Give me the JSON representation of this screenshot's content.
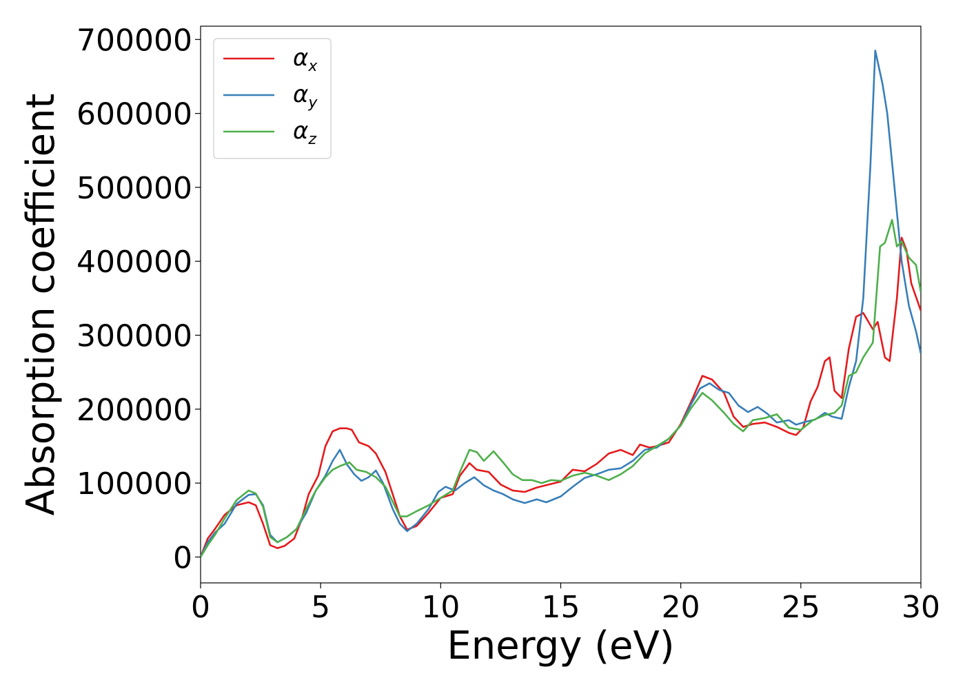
{
  "chart_data": {
    "type": "line",
    "xlabel": "Energy (eV)",
    "ylabel": "Absorption coefficient",
    "xlim": [
      0,
      30
    ],
    "ylim": [
      -35000,
      718000
    ],
    "x_ticks": [
      0,
      5,
      10,
      15,
      20,
      25,
      30
    ],
    "x_tick_labels": [
      "0",
      "5",
      "10",
      "15",
      "20",
      "25",
      "30"
    ],
    "y_ticks": [
      0,
      100000,
      200000,
      300000,
      400000,
      500000,
      600000,
      700000
    ],
    "y_tick_labels": [
      "0",
      "100000",
      "200000",
      "300000",
      "400000",
      "500000",
      "600000",
      "700000"
    ],
    "grid": false,
    "legend_position": "top-left",
    "series": [
      {
        "name": "α",
        "subscript": "x",
        "color": "#e41a1c",
        "points": [
          [
            0,
            0
          ],
          [
            0.3,
            25000
          ],
          [
            0.6,
            38000
          ],
          [
            1.0,
            57000
          ],
          [
            1.5,
            70000
          ],
          [
            2.0,
            74000
          ],
          [
            2.3,
            70000
          ],
          [
            2.6,
            45000
          ],
          [
            2.9,
            16000
          ],
          [
            3.2,
            12000
          ],
          [
            3.5,
            15000
          ],
          [
            3.9,
            25000
          ],
          [
            4.2,
            50000
          ],
          [
            4.5,
            85000
          ],
          [
            4.9,
            110000
          ],
          [
            5.2,
            150000
          ],
          [
            5.5,
            170000
          ],
          [
            5.8,
            174000
          ],
          [
            6.1,
            174000
          ],
          [
            6.3,
            172000
          ],
          [
            6.6,
            155000
          ],
          [
            7.0,
            150000
          ],
          [
            7.3,
            140000
          ],
          [
            7.7,
            115000
          ],
          [
            8.0,
            85000
          ],
          [
            8.3,
            55000
          ],
          [
            8.6,
            37000
          ],
          [
            9.0,
            42000
          ],
          [
            9.5,
            60000
          ],
          [
            10.0,
            80000
          ],
          [
            10.5,
            85000
          ],
          [
            10.8,
            110000
          ],
          [
            11.2,
            127000
          ],
          [
            11.5,
            118000
          ],
          [
            12.0,
            115000
          ],
          [
            12.5,
            98000
          ],
          [
            13.0,
            90000
          ],
          [
            13.5,
            88000
          ],
          [
            14.0,
            94000
          ],
          [
            14.5,
            98000
          ],
          [
            15.0,
            102000
          ],
          [
            15.5,
            118000
          ],
          [
            16.0,
            116000
          ],
          [
            16.5,
            126000
          ],
          [
            17.0,
            140000
          ],
          [
            17.5,
            145000
          ],
          [
            18.0,
            138000
          ],
          [
            18.3,
            152000
          ],
          [
            18.7,
            148000
          ],
          [
            19.0,
            150000
          ],
          [
            19.5,
            155000
          ],
          [
            20.0,
            180000
          ],
          [
            20.5,
            215000
          ],
          [
            20.9,
            245000
          ],
          [
            21.3,
            240000
          ],
          [
            21.8,
            222000
          ],
          [
            22.2,
            190000
          ],
          [
            22.6,
            176000
          ],
          [
            23.0,
            180000
          ],
          [
            23.5,
            182000
          ],
          [
            24.0,
            176000
          ],
          [
            24.5,
            168000
          ],
          [
            24.8,
            165000
          ],
          [
            25.1,
            175000
          ],
          [
            25.4,
            210000
          ],
          [
            25.7,
            230000
          ],
          [
            26.0,
            265000
          ],
          [
            26.2,
            270000
          ],
          [
            26.4,
            225000
          ],
          [
            26.7,
            215000
          ],
          [
            27.0,
            282000
          ],
          [
            27.3,
            325000
          ],
          [
            27.6,
            330000
          ],
          [
            28.0,
            308000
          ],
          [
            28.2,
            318000
          ],
          [
            28.5,
            270000
          ],
          [
            28.7,
            265000
          ],
          [
            29.0,
            350000
          ],
          [
            29.2,
            432000
          ],
          [
            29.4,
            415000
          ],
          [
            29.6,
            370000
          ],
          [
            30.0,
            333000
          ]
        ]
      },
      {
        "name": "α",
        "subscript": "y",
        "color": "#377eb8",
        "points": [
          [
            0,
            0
          ],
          [
            0.3,
            20000
          ],
          [
            0.6,
            33000
          ],
          [
            1.0,
            45000
          ],
          [
            1.5,
            72000
          ],
          [
            2.0,
            84000
          ],
          [
            2.3,
            85000
          ],
          [
            2.6,
            70000
          ],
          [
            2.9,
            30000
          ],
          [
            3.2,
            20000
          ],
          [
            3.6,
            27000
          ],
          [
            4.0,
            38000
          ],
          [
            4.4,
            60000
          ],
          [
            4.8,
            90000
          ],
          [
            5.2,
            110000
          ],
          [
            5.5,
            130000
          ],
          [
            5.8,
            145000
          ],
          [
            6.1,
            125000
          ],
          [
            6.4,
            112000
          ],
          [
            6.7,
            103000
          ],
          [
            7.0,
            108000
          ],
          [
            7.3,
            117000
          ],
          [
            7.6,
            100000
          ],
          [
            8.0,
            65000
          ],
          [
            8.3,
            45000
          ],
          [
            8.6,
            35000
          ],
          [
            9.0,
            45000
          ],
          [
            9.5,
            65000
          ],
          [
            9.9,
            88000
          ],
          [
            10.2,
            95000
          ],
          [
            10.6,
            90000
          ],
          [
            11.0,
            100000
          ],
          [
            11.4,
            108000
          ],
          [
            11.8,
            97000
          ],
          [
            12.2,
            90000
          ],
          [
            12.6,
            85000
          ],
          [
            13.0,
            78000
          ],
          [
            13.5,
            73000
          ],
          [
            14.0,
            78000
          ],
          [
            14.4,
            74000
          ],
          [
            15.0,
            82000
          ],
          [
            15.5,
            95000
          ],
          [
            16.0,
            107000
          ],
          [
            16.5,
            112000
          ],
          [
            17.0,
            118000
          ],
          [
            17.5,
            120000
          ],
          [
            18.0,
            130000
          ],
          [
            18.5,
            145000
          ],
          [
            19.0,
            148000
          ],
          [
            19.5,
            160000
          ],
          [
            20.0,
            178000
          ],
          [
            20.4,
            205000
          ],
          [
            20.8,
            228000
          ],
          [
            21.2,
            235000
          ],
          [
            21.6,
            226000
          ],
          [
            22.0,
            222000
          ],
          [
            22.4,
            205000
          ],
          [
            22.8,
            196000
          ],
          [
            23.2,
            203000
          ],
          [
            23.6,
            194000
          ],
          [
            24.0,
            182000
          ],
          [
            24.5,
            185000
          ],
          [
            24.8,
            179000
          ],
          [
            25.2,
            183000
          ],
          [
            25.6,
            186000
          ],
          [
            26.0,
            195000
          ],
          [
            26.3,
            190000
          ],
          [
            26.7,
            187000
          ],
          [
            27.0,
            230000
          ],
          [
            27.3,
            265000
          ],
          [
            27.6,
            350000
          ],
          [
            27.9,
            530000
          ],
          [
            28.1,
            685000
          ],
          [
            28.4,
            640000
          ],
          [
            28.6,
            600000
          ],
          [
            28.9,
            500000
          ],
          [
            29.2,
            400000
          ],
          [
            29.5,
            340000
          ],
          [
            29.8,
            305000
          ],
          [
            30.0,
            275000
          ]
        ]
      },
      {
        "name": "α",
        "subscript": "z",
        "color": "#4daf4a",
        "points": [
          [
            0,
            0
          ],
          [
            0.3,
            16000
          ],
          [
            0.6,
            30000
          ],
          [
            1.0,
            52000
          ],
          [
            1.5,
            77000
          ],
          [
            2.0,
            90000
          ],
          [
            2.3,
            86000
          ],
          [
            2.6,
            68000
          ],
          [
            2.9,
            27000
          ],
          [
            3.2,
            20000
          ],
          [
            3.6,
            27000
          ],
          [
            4.0,
            38000
          ],
          [
            4.4,
            65000
          ],
          [
            4.8,
            90000
          ],
          [
            5.2,
            108000
          ],
          [
            5.5,
            118000
          ],
          [
            5.8,
            123000
          ],
          [
            6.2,
            128000
          ],
          [
            6.5,
            118000
          ],
          [
            6.9,
            115000
          ],
          [
            7.3,
            108000
          ],
          [
            7.7,
            95000
          ],
          [
            8.0,
            75000
          ],
          [
            8.3,
            55000
          ],
          [
            8.6,
            55000
          ],
          [
            9.0,
            62000
          ],
          [
            9.5,
            70000
          ],
          [
            10.0,
            80000
          ],
          [
            10.5,
            90000
          ],
          [
            10.8,
            115000
          ],
          [
            11.2,
            145000
          ],
          [
            11.5,
            142000
          ],
          [
            11.8,
            130000
          ],
          [
            12.2,
            143000
          ],
          [
            12.6,
            128000
          ],
          [
            13.0,
            112000
          ],
          [
            13.4,
            104000
          ],
          [
            13.8,
            104000
          ],
          [
            14.2,
            100000
          ],
          [
            14.6,
            104000
          ],
          [
            15.0,
            103000
          ],
          [
            15.5,
            110000
          ],
          [
            16.0,
            114000
          ],
          [
            16.5,
            110000
          ],
          [
            17.0,
            104000
          ],
          [
            17.5,
            112000
          ],
          [
            18.0,
            123000
          ],
          [
            18.5,
            140000
          ],
          [
            19.0,
            150000
          ],
          [
            19.5,
            160000
          ],
          [
            20.0,
            178000
          ],
          [
            20.4,
            200000
          ],
          [
            20.9,
            222000
          ],
          [
            21.3,
            212000
          ],
          [
            21.8,
            195000
          ],
          [
            22.2,
            180000
          ],
          [
            22.6,
            170000
          ],
          [
            23.0,
            185000
          ],
          [
            23.5,
            188000
          ],
          [
            24.0,
            193000
          ],
          [
            24.5,
            175000
          ],
          [
            25.0,
            172000
          ],
          [
            25.5,
            185000
          ],
          [
            26.0,
            192000
          ],
          [
            26.4,
            195000
          ],
          [
            26.7,
            205000
          ],
          [
            27.0,
            245000
          ],
          [
            27.3,
            250000
          ],
          [
            27.6,
            270000
          ],
          [
            28.0,
            290000
          ],
          [
            28.3,
            420000
          ],
          [
            28.5,
            425000
          ],
          [
            28.8,
            456000
          ],
          [
            29.0,
            420000
          ],
          [
            29.2,
            427000
          ],
          [
            29.5,
            405000
          ],
          [
            29.8,
            395000
          ],
          [
            30.0,
            358000
          ]
        ]
      }
    ]
  }
}
